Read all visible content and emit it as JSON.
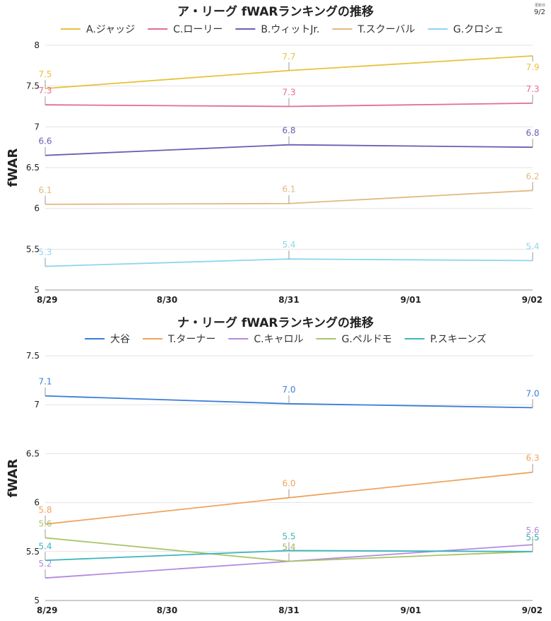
{
  "update": {
    "label": "更新日",
    "date": "9/2"
  },
  "chart_data": [
    {
      "type": "line",
      "title": "ア・リーグ fWARランキングの推移",
      "xlabel": "",
      "ylabel": "fWAR",
      "x": [
        "8/29",
        "8/30",
        "8/31",
        "9/01",
        "9/02"
      ],
      "ylim": [
        5,
        8
      ],
      "yticks": [
        5,
        5.5,
        6,
        6.5,
        7,
        7.5,
        8
      ],
      "legend_position": "top",
      "grid": true,
      "series": [
        {
          "name": "A.ジャッジ",
          "color": "#e8c23a",
          "points": [
            [
              "8/29",
              7.47
            ],
            [
              "8/31",
              7.69
            ],
            [
              "9/02",
              7.87
            ]
          ],
          "labels": [
            "7.5",
            "7.7",
            "7.9"
          ],
          "label_pos": [
            "above",
            "above",
            "below"
          ]
        },
        {
          "name": "C.ローリー",
          "color": "#e36b9a",
          "points": [
            [
              "8/29",
              7.27
            ],
            [
              "8/31",
              7.25
            ],
            [
              "9/02",
              7.29
            ]
          ],
          "labels": [
            "7.3",
            "7.3",
            "7.3"
          ],
          "label_pos": [
            "above",
            "above",
            "above"
          ]
        },
        {
          "name": "B.ウィットJr.",
          "color": "#6a5fb3",
          "points": [
            [
              "8/29",
              6.65
            ],
            [
              "8/31",
              6.78
            ],
            [
              "9/02",
              6.75
            ]
          ],
          "labels": [
            "6.6",
            "6.8",
            "6.8"
          ],
          "label_pos": [
            "above",
            "above",
            "above"
          ]
        },
        {
          "name": "T.スクーバル",
          "color": "#e3b881",
          "points": [
            [
              "8/29",
              6.05
            ],
            [
              "8/31",
              6.06
            ],
            [
              "9/02",
              6.22
            ]
          ],
          "labels": [
            "6.1",
            "6.1",
            "6.2"
          ],
          "label_pos": [
            "above",
            "above",
            "above"
          ]
        },
        {
          "name": "G.クロシェ",
          "color": "#8fd5ef",
          "points": [
            [
              "8/29",
              5.29
            ],
            [
              "8/31",
              5.38
            ],
            [
              "9/02",
              5.36
            ]
          ],
          "labels": [
            "5.3",
            "5.4",
            "5.4"
          ],
          "label_pos": [
            "above",
            "above",
            "above"
          ]
        }
      ]
    },
    {
      "type": "line",
      "title": "ナ・リーグ fWARランキングの推移",
      "xlabel": "",
      "ylabel": "fWAR",
      "x": [
        "8/29",
        "8/30",
        "8/31",
        "9/01",
        "9/02"
      ],
      "ylim": [
        5,
        7.5
      ],
      "yticks": [
        5,
        5.5,
        6,
        6.5,
        7,
        7.5
      ],
      "legend_position": "top",
      "grid": true,
      "series": [
        {
          "name": "大谷",
          "color": "#3b7dd8",
          "points": [
            [
              "8/29",
              7.09
            ],
            [
              "8/31",
              7.01
            ],
            [
              "9/02",
              6.97
            ]
          ],
          "labels": [
            "7.1",
            "7.0",
            "7.0"
          ],
          "label_pos": [
            "above",
            "above",
            "above"
          ]
        },
        {
          "name": "T.ターナー",
          "color": "#f0a35e",
          "points": [
            [
              "8/29",
              5.78
            ],
            [
              "8/31",
              6.05
            ],
            [
              "9/02",
              6.31
            ]
          ],
          "labels": [
            "5.8",
            "6.0",
            "6.3"
          ],
          "label_pos": [
            "above",
            "above",
            "above"
          ]
        },
        {
          "name": "C.キャロル",
          "color": "#b38ae0",
          "points": [
            [
              "8/29",
              5.23
            ],
            [
              "8/31",
              5.4
            ],
            [
              "9/02",
              5.57
            ]
          ],
          "labels": [
            "5.2",
            "5.4",
            "5.6"
          ],
          "label_pos": [
            "above",
            "above",
            "above"
          ]
        },
        {
          "name": "G.ペルドモ",
          "color": "#a9c46a",
          "points": [
            [
              "8/29",
              5.64
            ],
            [
              "8/31",
              5.4
            ],
            [
              "9/02",
              5.5
            ]
          ],
          "labels": [
            "5.6",
            "5.4",
            "5.5"
          ],
          "label_pos": [
            "above",
            "above",
            "above"
          ]
        },
        {
          "name": "P.スキーンズ",
          "color": "#3bb6bd",
          "points": [
            [
              "8/29",
              5.41
            ],
            [
              "8/31",
              5.51
            ],
            [
              "9/02",
              5.5
            ]
          ],
          "labels": [
            "5.4",
            "5.5",
            "5.5"
          ],
          "label_pos": [
            "above",
            "above",
            "above"
          ]
        }
      ]
    }
  ]
}
